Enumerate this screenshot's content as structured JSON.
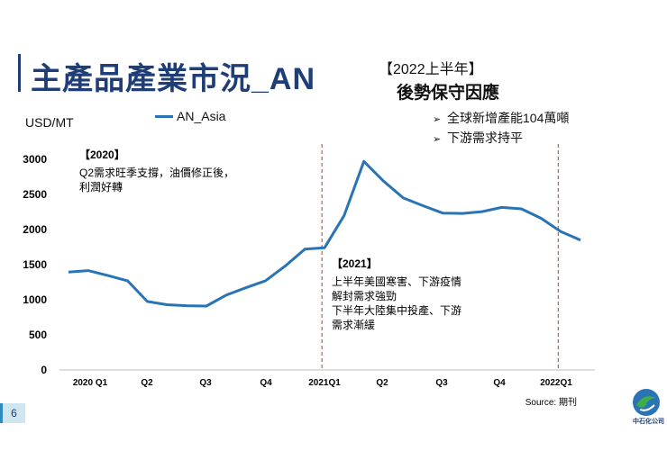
{
  "page": {
    "number": "6"
  },
  "slide": {
    "title": "主產品產業市況_AN",
    "note_header": "【2022上半年】",
    "note_subtitle": "後勢保守因應",
    "bullets": [
      "全球新增產能104萬噸",
      "下游需求持平"
    ]
  },
  "logo": {
    "text": "中石化公司"
  },
  "chart_data": {
    "type": "line",
    "ylabel": "USD/MT",
    "ylim": [
      0,
      3000
    ],
    "yticks": [
      0,
      500,
      1000,
      1500,
      2000,
      2500,
      3000
    ],
    "x_tick_labels": [
      "2020 Q1",
      "Q2",
      "Q3",
      "Q4",
      "2021Q1",
      "Q2",
      "Q3",
      "Q4",
      "2022Q1"
    ],
    "legend": "AN_Asia",
    "source": "Source: 期刊",
    "series": [
      {
        "name": "AN_Asia",
        "values": [
          1395,
          1415,
          1345,
          1270,
          975,
          930,
          915,
          910,
          1065,
          1170,
          1270,
          1480,
          1720,
          1740,
          2200,
          2970,
          2690,
          2450,
          2340,
          2235,
          2230,
          2255,
          2315,
          2295,
          2160,
          1970,
          1850
        ]
      }
    ],
    "reference_lines": [
      {
        "label": "2021Q1 start",
        "x_index": 12
      },
      {
        "label": "2022Q1 start",
        "x_index": 24
      }
    ],
    "annotations": [
      {
        "title": "【2020】",
        "lines": [
          "Q2需求旺季支撐，油價修正後，",
          "利潤好轉"
        ]
      },
      {
        "title": "【2021】",
        "lines": [
          "上半年美國寒害、下游疫情",
          "解封需求強勁",
          "下半年大陸集中投產、下游",
          "需求漸緩"
        ]
      }
    ]
  }
}
